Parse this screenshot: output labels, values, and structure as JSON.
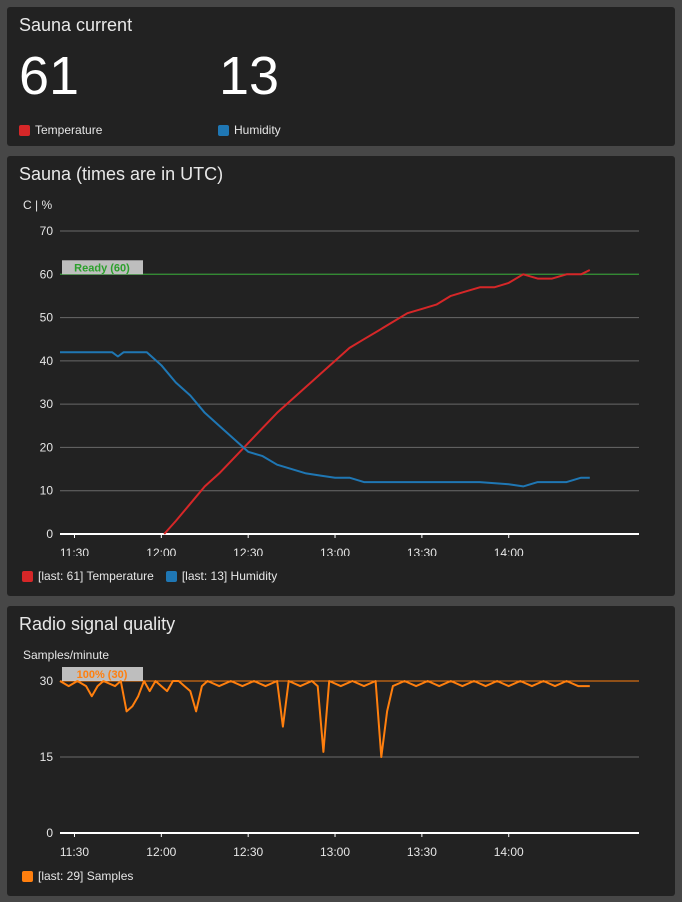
{
  "current": {
    "title": "Sauna current",
    "temperature_value": "61",
    "humidity_value": "13",
    "legend": [
      {
        "label": "Temperature",
        "color": "#d62728"
      },
      {
        "label": "Humidity",
        "color": "#1f77b4"
      }
    ]
  },
  "sauna_chart": {
    "title": "Sauna (times are in UTC)",
    "unit_label": "C | %",
    "legend": [
      {
        "label": "[last: 61] Temperature",
        "color": "#d62728"
      },
      {
        "label": "[last: 13] Humidity",
        "color": "#1f77b4"
      }
    ]
  },
  "radio_chart": {
    "title": "Radio signal quality",
    "unit_label": "Samples/minute",
    "legend": [
      {
        "label": "[last: 29] Samples",
        "color": "#ff7f0e"
      }
    ]
  },
  "chart_data": [
    {
      "type": "line",
      "title": "Sauna (times are in UTC)",
      "ylabel": "C | %",
      "ylim": [
        0,
        70
      ],
      "xlim": [
        "11:25",
        "14:45"
      ],
      "yticks": [
        0,
        10,
        20,
        30,
        40,
        50,
        60,
        70
      ],
      "xticks": [
        "11:30",
        "12:00",
        "12:30",
        "13:00",
        "13:30",
        "14:00"
      ],
      "grid": true,
      "legend_position": "bottom-left",
      "threshold": {
        "label": "Ready (60)",
        "value": 60,
        "color": "#2ca02c"
      },
      "series": [
        {
          "name": "Temperature",
          "color": "#d62728",
          "points": [
            [
              "12:01",
              0
            ],
            [
              "12:05",
              3
            ],
            [
              "12:10",
              7
            ],
            [
              "12:15",
              11
            ],
            [
              "12:20",
              14
            ],
            [
              "12:25",
              17.5
            ],
            [
              "12:30",
              21
            ],
            [
              "12:35",
              24.5
            ],
            [
              "12:40",
              28
            ],
            [
              "12:45",
              31
            ],
            [
              "12:50",
              34
            ],
            [
              "12:55",
              37
            ],
            [
              "13:00",
              40
            ],
            [
              "13:05",
              43
            ],
            [
              "13:10",
              45
            ],
            [
              "13:15",
              47
            ],
            [
              "13:20",
              49
            ],
            [
              "13:25",
              51
            ],
            [
              "13:30",
              52
            ],
            [
              "13:35",
              53
            ],
            [
              "13:40",
              55
            ],
            [
              "13:45",
              56
            ],
            [
              "13:50",
              57
            ],
            [
              "13:55",
              57
            ],
            [
              "14:00",
              58
            ],
            [
              "14:05",
              60
            ],
            [
              "14:10",
              59
            ],
            [
              "14:15",
              59
            ],
            [
              "14:20",
              60
            ],
            [
              "14:25",
              60
            ],
            [
              "14:28",
              61
            ]
          ]
        },
        {
          "name": "Humidity",
          "color": "#1f77b4",
          "points": [
            [
              "11:25",
              42
            ],
            [
              "11:35",
              42
            ],
            [
              "11:43",
              42
            ],
            [
              "11:45",
              41
            ],
            [
              "11:47",
              42
            ],
            [
              "11:55",
              42
            ],
            [
              "12:00",
              39
            ],
            [
              "12:05",
              35
            ],
            [
              "12:10",
              32
            ],
            [
              "12:15",
              28
            ],
            [
              "12:20",
              25
            ],
            [
              "12:25",
              22
            ],
            [
              "12:30",
              19
            ],
            [
              "12:35",
              18
            ],
            [
              "12:40",
              16
            ],
            [
              "12:45",
              15
            ],
            [
              "12:50",
              14
            ],
            [
              "12:55",
              13.5
            ],
            [
              "13:00",
              13
            ],
            [
              "13:05",
              13
            ],
            [
              "13:10",
              12
            ],
            [
              "13:20",
              12
            ],
            [
              "13:30",
              12
            ],
            [
              "13:40",
              12
            ],
            [
              "13:50",
              12
            ],
            [
              "14:00",
              11.5
            ],
            [
              "14:05",
              11
            ],
            [
              "14:10",
              12
            ],
            [
              "14:20",
              12
            ],
            [
              "14:25",
              13
            ],
            [
              "14:28",
              13
            ]
          ]
        }
      ]
    },
    {
      "type": "line",
      "title": "Radio signal quality",
      "ylabel": "Samples/minute",
      "ylim": [
        0,
        30
      ],
      "xlim": [
        "11:25",
        "14:45"
      ],
      "yticks": [
        0,
        15,
        30
      ],
      "xticks": [
        "11:30",
        "12:00",
        "12:30",
        "13:00",
        "13:30",
        "14:00"
      ],
      "grid": true,
      "legend_position": "bottom-left",
      "threshold": {
        "label": "100% (30)",
        "value": 30,
        "color": "#ff7f0e"
      },
      "series": [
        {
          "name": "Samples",
          "color": "#ff7f0e",
          "points": [
            [
              "11:25",
              30
            ],
            [
              "11:28",
              29
            ],
            [
              "11:31",
              30
            ],
            [
              "11:34",
              29
            ],
            [
              "11:36",
              27
            ],
            [
              "11:38",
              29
            ],
            [
              "11:40",
              30
            ],
            [
              "11:44",
              29
            ],
            [
              "11:46",
              30
            ],
            [
              "11:48",
              24
            ],
            [
              "11:50",
              25
            ],
            [
              "11:52",
              27
            ],
            [
              "11:54",
              30
            ],
            [
              "11:56",
              28
            ],
            [
              "11:58",
              30
            ],
            [
              "12:00",
              29
            ],
            [
              "12:02",
              28
            ],
            [
              "12:04",
              30
            ],
            [
              "12:06",
              30
            ],
            [
              "12:08",
              29
            ],
            [
              "12:10",
              28
            ],
            [
              "12:12",
              24
            ],
            [
              "12:14",
              29
            ],
            [
              "12:16",
              30
            ],
            [
              "12:20",
              29
            ],
            [
              "12:24",
              30
            ],
            [
              "12:28",
              29
            ],
            [
              "12:32",
              30
            ],
            [
              "12:36",
              29
            ],
            [
              "12:40",
              30
            ],
            [
              "12:42",
              21
            ],
            [
              "12:44",
              30
            ],
            [
              "12:48",
              29
            ],
            [
              "12:52",
              30
            ],
            [
              "12:54",
              29
            ],
            [
              "12:56",
              16
            ],
            [
              "12:58",
              30
            ],
            [
              "13:02",
              29
            ],
            [
              "13:06",
              30
            ],
            [
              "13:10",
              29
            ],
            [
              "13:14",
              30
            ],
            [
              "13:16",
              15
            ],
            [
              "13:18",
              24
            ],
            [
              "13:20",
              29
            ],
            [
              "13:24",
              30
            ],
            [
              "13:28",
              29
            ],
            [
              "13:32",
              30
            ],
            [
              "13:36",
              29
            ],
            [
              "13:40",
              30
            ],
            [
              "13:44",
              29
            ],
            [
              "13:48",
              30
            ],
            [
              "13:52",
              29
            ],
            [
              "13:56",
              30
            ],
            [
              "14:00",
              29
            ],
            [
              "14:04",
              30
            ],
            [
              "14:08",
              29
            ],
            [
              "14:12",
              30
            ],
            [
              "14:16",
              29
            ],
            [
              "14:20",
              30
            ],
            [
              "14:24",
              29
            ],
            [
              "14:28",
              29
            ]
          ]
        }
      ]
    }
  ]
}
